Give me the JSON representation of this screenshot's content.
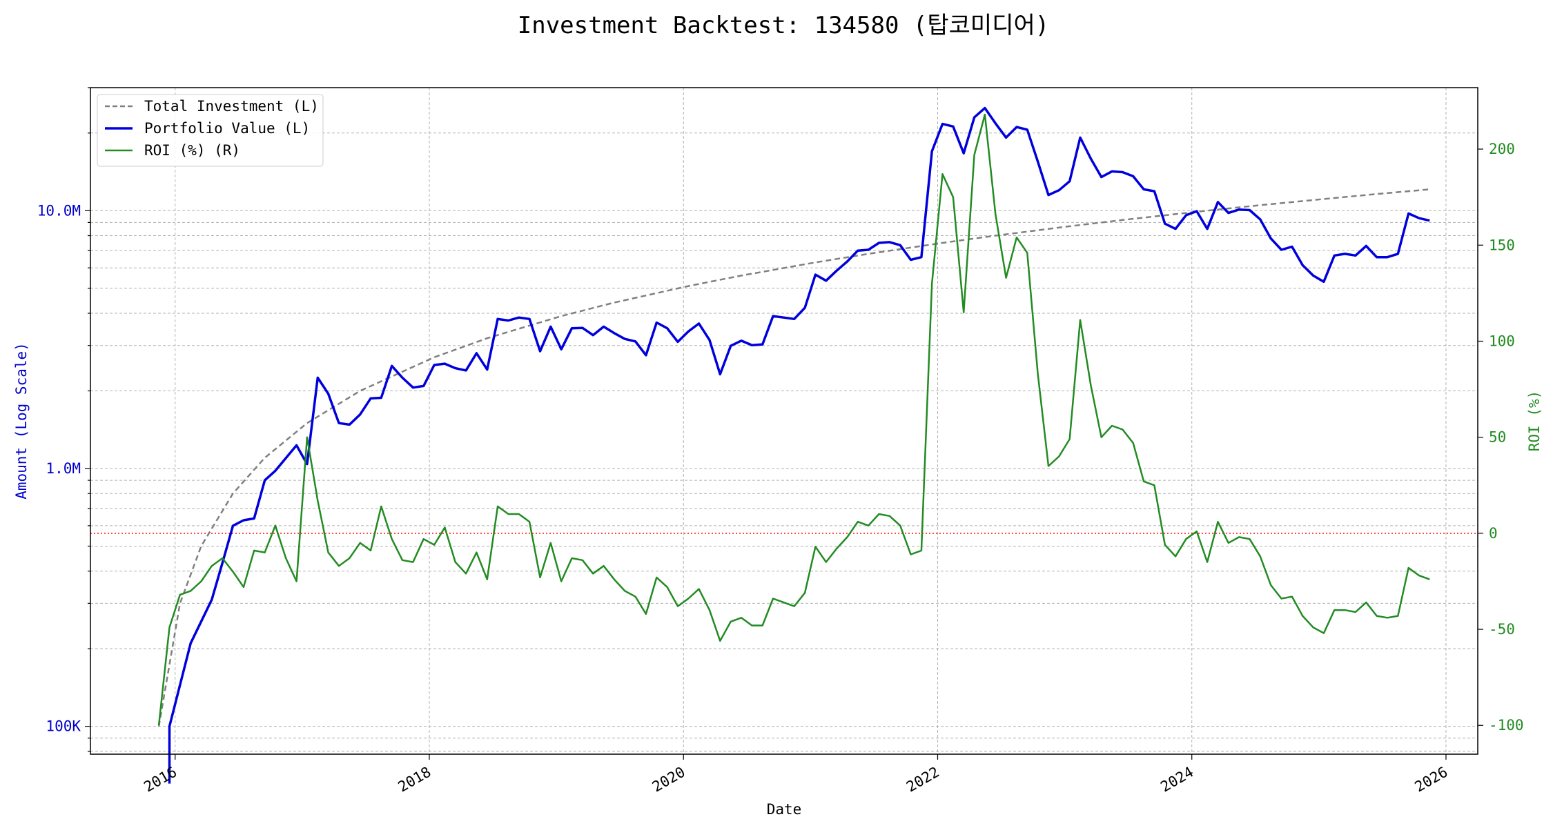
{
  "chart_data": {
    "type": "line",
    "title": "Investment Backtest: 134580 (탑코미디어)",
    "xlabel": "Date",
    "ylabel_left": "Amount (Log Scale)",
    "ylabel_right": "ROI (%)",
    "left_scale": "log",
    "left_ylim": [
      78000,
      30000000
    ],
    "right_ylim": [
      -115,
      232
    ],
    "xlim": [
      "2015-05-01",
      "2026-04-01"
    ],
    "x_ticks": [
      "2016",
      "2018",
      "2020",
      "2022",
      "2024",
      "2026"
    ],
    "left_ticks": [
      {
        "value": 100000,
        "label": "100K"
      },
      {
        "value": 1000000,
        "label": "1.0M"
      },
      {
        "value": 10000000,
        "label": "10.0M"
      }
    ],
    "right_ticks": [
      -100,
      -50,
      0,
      50,
      100,
      150,
      200
    ],
    "grid": true,
    "legend_position": "upper-left",
    "zero_line": {
      "axis": "right",
      "value": 0,
      "color": "#ff0000"
    },
    "colors": {
      "investment": "#808080",
      "portfolio": "#0000dd",
      "roi": "#228b22"
    },
    "series": [
      {
        "name": "Total Investment (L)",
        "axis": "left",
        "style": "dashed",
        "x": [
          "2015-11",
          "2016-01",
          "2016-03",
          "2016-06",
          "2016-09",
          "2017-01",
          "2017-06",
          "2018-01",
          "2018-06",
          "2019-01",
          "2019-06",
          "2020-01",
          "2020-06",
          "2021-01",
          "2021-06",
          "2022-01",
          "2022-06",
          "2023-01",
          "2023-06",
          "2024-01",
          "2024-06",
          "2025-01",
          "2025-06",
          "2025-11"
        ],
        "values": [
          100000,
          300000,
          500000,
          800000,
          1100000,
          1500000,
          2000000,
          2700000,
          3200000,
          3900000,
          4400000,
          5100000,
          5600000,
          6300000,
          6800000,
          7500000,
          8000000,
          8700000,
          9200000,
          9900000,
          10400000,
          11100000,
          11600000,
          12100000
        ]
      },
      {
        "name": "Portfolio Value (L)",
        "axis": "left",
        "style": "solid",
        "x": [
          "2015-12",
          "2015-12",
          "2016-02",
          "2016-04",
          "2016-05",
          "2016-06",
          "2016-07",
          "2016-08",
          "2016-09",
          "2016-10",
          "2016-12",
          "2017-01",
          "2017-02",
          "2017-03",
          "2017-04",
          "2017-05",
          "2017-06",
          "2017-07",
          "2017-08",
          "2017-09",
          "2017-10",
          "2017-11",
          "2017-12",
          "2018-01",
          "2018-02",
          "2018-03",
          "2018-04",
          "2018-05",
          "2018-06",
          "2018-07",
          "2018-08",
          "2018-09",
          "2018-10",
          "2018-11",
          "2018-12",
          "2019-01",
          "2019-02",
          "2019-03",
          "2019-04",
          "2019-05",
          "2019-06",
          "2019-07",
          "2019-08",
          "2019-09",
          "2019-10",
          "2019-11",
          "2019-12",
          "2020-01",
          "2020-02",
          "2020-03",
          "2020-04",
          "2020-05",
          "2020-06",
          "2020-07",
          "2020-08",
          "2020-09",
          "2020-10",
          "2020-11",
          "2020-12",
          "2021-01",
          "2021-02",
          "2021-03",
          "2021-04",
          "2021-05",
          "2021-06",
          "2021-07",
          "2021-08",
          "2021-09",
          "2021-10",
          "2021-11",
          "2021-12",
          "2022-01",
          "2022-02",
          "2022-03",
          "2022-04",
          "2022-05",
          "2022-06",
          "2022-07",
          "2022-08",
          "2022-09",
          "2022-10",
          "2022-11",
          "2022-12",
          "2023-01",
          "2023-02",
          "2023-03",
          "2023-04",
          "2023-05",
          "2023-06",
          "2023-07",
          "2023-08",
          "2023-09",
          "2023-10",
          "2023-11",
          "2023-12",
          "2024-01",
          "2024-02",
          "2024-03",
          "2024-04",
          "2024-05",
          "2024-06",
          "2024-07",
          "2024-08",
          "2024-09",
          "2024-10",
          "2024-11",
          "2024-12",
          "2025-01",
          "2025-02",
          "2025-03",
          "2025-04",
          "2025-05",
          "2025-06",
          "2025-07",
          "2025-08",
          "2025-09",
          "2025-10",
          "2025-11"
        ],
        "values": [
          60000,
          100000,
          210000,
          310000,
          430000,
          600000,
          630000,
          640000,
          900000,
          980000,
          1230000,
          1040000,
          2250000,
          1950000,
          1500000,
          1480000,
          1620000,
          1870000,
          1880000,
          2500000,
          2250000,
          2060000,
          2090000,
          2520000,
          2550000,
          2450000,
          2400000,
          2800000,
          2420000,
          3800000,
          3750000,
          3850000,
          3800000,
          2850000,
          3550000,
          2900000,
          3500000,
          3510000,
          3290000,
          3550000,
          3350000,
          3180000,
          3110000,
          2750000,
          3680000,
          3500000,
          3100000,
          3400000,
          3650000,
          3150000,
          2320000,
          2990000,
          3130000,
          3010000,
          3030000,
          3900000,
          3850000,
          3800000,
          4200000,
          5650000,
          5350000,
          5850000,
          6350000,
          7000000,
          7050000,
          7500000,
          7550000,
          7350000,
          6450000,
          6600000,
          17000000,
          21700000,
          21200000,
          16700000,
          23000000,
          25000000,
          21800000,
          19200000,
          21100000,
          20600000,
          15500000,
          11500000,
          12000000,
          13000000,
          19200000,
          15900000,
          13500000,
          14200000,
          14100000,
          13600000,
          12100000,
          11900000,
          8900000,
          8500000,
          9600000,
          9950000,
          8500000,
          10800000,
          9800000,
          10100000,
          10050000,
          9250000,
          7800000,
          7050000,
          7250000,
          6150000,
          5600000,
          5300000,
          6700000,
          6800000,
          6700000,
          7300000,
          6600000,
          6600000,
          6800000,
          9750000,
          9350000,
          9150000
        ]
      },
      {
        "name": "ROI (%) (R)",
        "axis": "right",
        "style": "solid",
        "x": [
          "2015-11",
          "2015-12",
          "2016-01",
          "2016-02",
          "2016-03",
          "2016-04",
          "2016-05",
          "2016-06",
          "2016-07",
          "2016-08",
          "2016-09",
          "2016-10",
          "2016-11",
          "2016-12",
          "2017-01",
          "2017-02",
          "2017-03",
          "2017-04",
          "2017-05",
          "2017-06",
          "2017-07",
          "2017-08",
          "2017-09",
          "2017-10",
          "2017-11",
          "2017-12",
          "2018-01",
          "2018-02",
          "2018-03",
          "2018-04",
          "2018-05",
          "2018-06",
          "2018-07",
          "2018-08",
          "2018-09",
          "2018-10",
          "2018-11",
          "2018-12",
          "2019-01",
          "2019-02",
          "2019-03",
          "2019-04",
          "2019-05",
          "2019-06",
          "2019-07",
          "2019-08",
          "2019-09",
          "2019-10",
          "2019-11",
          "2019-12",
          "2020-01",
          "2020-02",
          "2020-03",
          "2020-04",
          "2020-05",
          "2020-06",
          "2020-07",
          "2020-08",
          "2020-09",
          "2020-10",
          "2020-11",
          "2020-12",
          "2021-01",
          "2021-02",
          "2021-03",
          "2021-04",
          "2021-05",
          "2021-06",
          "2021-07",
          "2021-08",
          "2021-09",
          "2021-10",
          "2021-11",
          "2021-12",
          "2022-01",
          "2022-02",
          "2022-03",
          "2022-04",
          "2022-05",
          "2022-06",
          "2022-07",
          "2022-08",
          "2022-09",
          "2022-10",
          "2022-11",
          "2022-12",
          "2023-01",
          "2023-02",
          "2023-03",
          "2023-04",
          "2023-05",
          "2023-06",
          "2023-07",
          "2023-08",
          "2023-09",
          "2023-10",
          "2023-11",
          "2023-12",
          "2024-01",
          "2024-02",
          "2024-03",
          "2024-04",
          "2024-05",
          "2024-06",
          "2024-07",
          "2024-08",
          "2024-09",
          "2024-10",
          "2024-11",
          "2024-12",
          "2025-01",
          "2025-02",
          "2025-03",
          "2025-04",
          "2025-05",
          "2025-06",
          "2025-07",
          "2025-08",
          "2025-09",
          "2025-10",
          "2025-11"
        ],
        "values": [
          -100,
          -49,
          -32,
          -30,
          -25,
          -17,
          -13,
          -20,
          -28,
          -9,
          -10,
          4,
          -13,
          -25,
          50,
          17,
          -10,
          -17,
          -13,
          -5,
          -9,
          14,
          -3,
          -14,
          -15,
          -3,
          -6,
          3,
          -15,
          -21,
          -10,
          -24,
          14,
          10,
          10,
          6,
          -23,
          -5,
          -25,
          -13,
          -14,
          -21,
          -17,
          -24,
          -30,
          -33,
          -42,
          -23,
          -28,
          -38,
          -34,
          -29,
          -40,
          -56,
          -46,
          -44,
          -48,
          -48,
          -34,
          -36,
          -38,
          -31,
          -7,
          -15,
          -8,
          -2,
          6,
          4,
          10,
          9,
          4,
          -11,
          -9,
          130,
          187,
          175,
          115,
          197,
          218,
          166,
          133,
          154,
          146,
          83,
          35,
          40,
          49,
          111,
          77,
          50,
          56,
          54,
          47,
          27,
          25,
          -6,
          -12,
          -3,
          1,
          -15,
          6,
          -5,
          -2,
          -3,
          -12,
          -27,
          -34,
          -33,
          -43,
          -49,
          -52,
          -40,
          -40,
          -41,
          -36,
          -43,
          -44,
          -43,
          -18,
          -22,
          -24
        ]
      }
    ]
  }
}
